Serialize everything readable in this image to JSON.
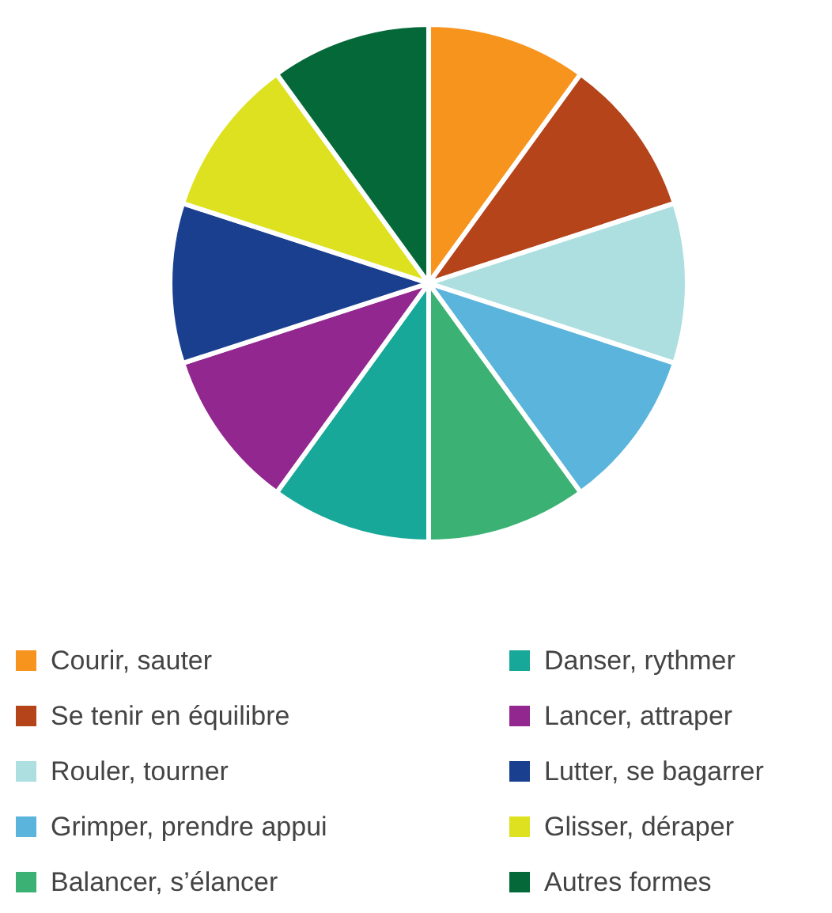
{
  "chart_data": {
    "type": "pie",
    "categories": [
      "Courir, sauter",
      "Se tenir en équilibre",
      "Rouler, tourner",
      "Grimper, prendre appui",
      "Balancer, s’élancer",
      "Danser, rythmer",
      "Lancer, attraper",
      "Lutter, se bagarrer",
      "Glisser, déraper",
      "Autres formes"
    ],
    "values": [
      10,
      10,
      10,
      10,
      10,
      10,
      10,
      10,
      10,
      10
    ],
    "colors": [
      "#f7941d",
      "#b5441b",
      "#addfe0",
      "#5ab4dc",
      "#3bb273",
      "#17a89a",
      "#92278f",
      "#1b3f8f",
      "#dde11f",
      "#056839"
    ],
    "legend": "bottom"
  }
}
